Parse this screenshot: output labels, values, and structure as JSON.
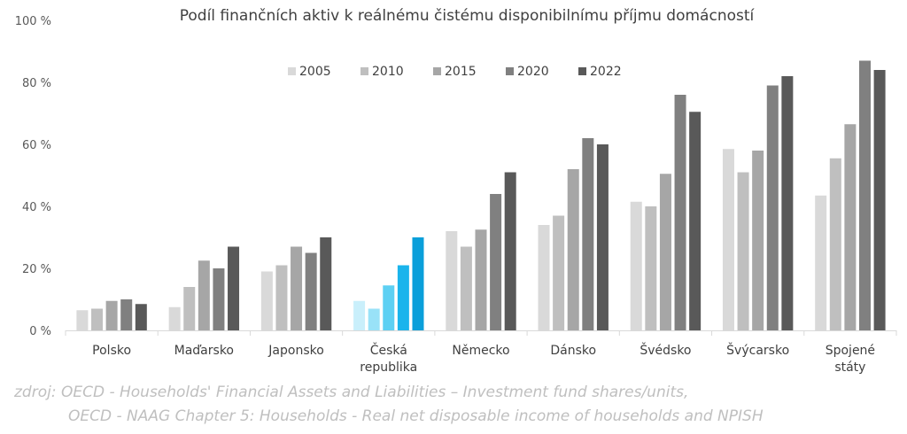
{
  "chart_data": {
    "type": "bar",
    "title": "Podíl finančních aktiv k reálnému čistému disponibilnímu příjmu domácností",
    "xlabel": "",
    "ylabel": "",
    "ylim": [
      0,
      100
    ],
    "y_ticks": [
      0,
      20,
      40,
      60,
      80,
      100
    ],
    "y_tick_labels": [
      "0 %",
      "20 %",
      "40 %",
      "60 %",
      "80 %",
      "100 %"
    ],
    "grid": false,
    "legend_position": "top-right",
    "categories": [
      [
        "Polsko"
      ],
      [
        "Maďarsko"
      ],
      [
        "Japonsko"
      ],
      [
        "Česká",
        "republika"
      ],
      [
        "Německo"
      ],
      [
        "Dánsko"
      ],
      [
        "Švédsko"
      ],
      [
        "Švýcarsko"
      ],
      [
        "Spojené",
        "státy"
      ]
    ],
    "series": [
      {
        "name": "2005",
        "color": "#d9d9d9",
        "values": [
          6.5,
          7.5,
          19,
          9.5,
          32,
          34,
          41.5,
          58.5,
          43.5
        ]
      },
      {
        "name": "2010",
        "color": "#bfbfbf",
        "values": [
          7,
          14,
          21,
          7,
          27,
          37,
          40,
          51,
          55.5
        ]
      },
      {
        "name": "2015",
        "color": "#a6a6a6",
        "values": [
          9.5,
          22.5,
          27,
          14.5,
          32.5,
          52,
          50.5,
          58,
          66.5
        ]
      },
      {
        "name": "2020",
        "color": "#808080",
        "values": [
          10,
          20,
          25,
          21,
          44,
          62,
          76,
          79,
          87
        ]
      },
      {
        "name": "2022",
        "color": "#595959",
        "values": [
          8.5,
          27,
          30,
          30,
          51,
          60,
          70.5,
          82,
          84
        ]
      }
    ],
    "highlight": {
      "category_index": 3,
      "colors": [
        "#c9effb",
        "#99e2f8",
        "#5dd0f3",
        "#1ab4ec",
        "#0a9fda"
      ]
    }
  },
  "source": {
    "line1": "zdroj: OECD - Households' Financial Assets and Liabilities – Investment fund shares/units,",
    "line2": "OECD - NAAG Chapter 5: Households - Real net disposable income of households and NPISH"
  }
}
